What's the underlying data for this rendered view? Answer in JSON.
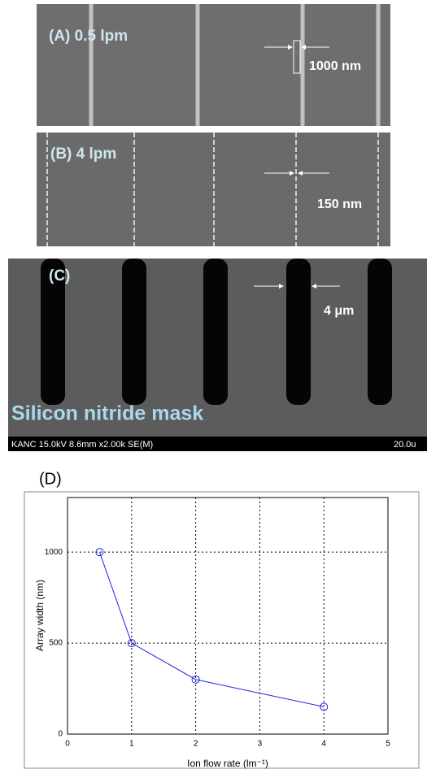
{
  "panels": {
    "a": {
      "label": "(A) 0.5 lpm",
      "scale": "1000 nm"
    },
    "b": {
      "label": "(B) 4 lpm",
      "scale": "150 nm"
    },
    "c": {
      "label": "(C)",
      "scale": "4 μm",
      "caption": "Silicon nitride mask",
      "info": "KANC 15.0kV 8.6mm x2.00k SE(M)",
      "scalebar": "20.0u"
    },
    "d": {
      "label": "(D)"
    }
  },
  "chart_data": {
    "type": "line",
    "x": [
      0.5,
      1,
      2,
      4
    ],
    "values": [
      1000,
      500,
      300,
      150
    ],
    "color": "#2020e0",
    "xlabel": "Ion flow rate (lm⁻¹)",
    "ylabel": "Array width (nm)",
    "xlim": [
      0,
      5
    ],
    "ylim": [
      0,
      1300
    ],
    "xticks": [
      0,
      1,
      2,
      3,
      4,
      5
    ],
    "yticks": [
      0,
      500,
      1000
    ],
    "grid": true
  }
}
